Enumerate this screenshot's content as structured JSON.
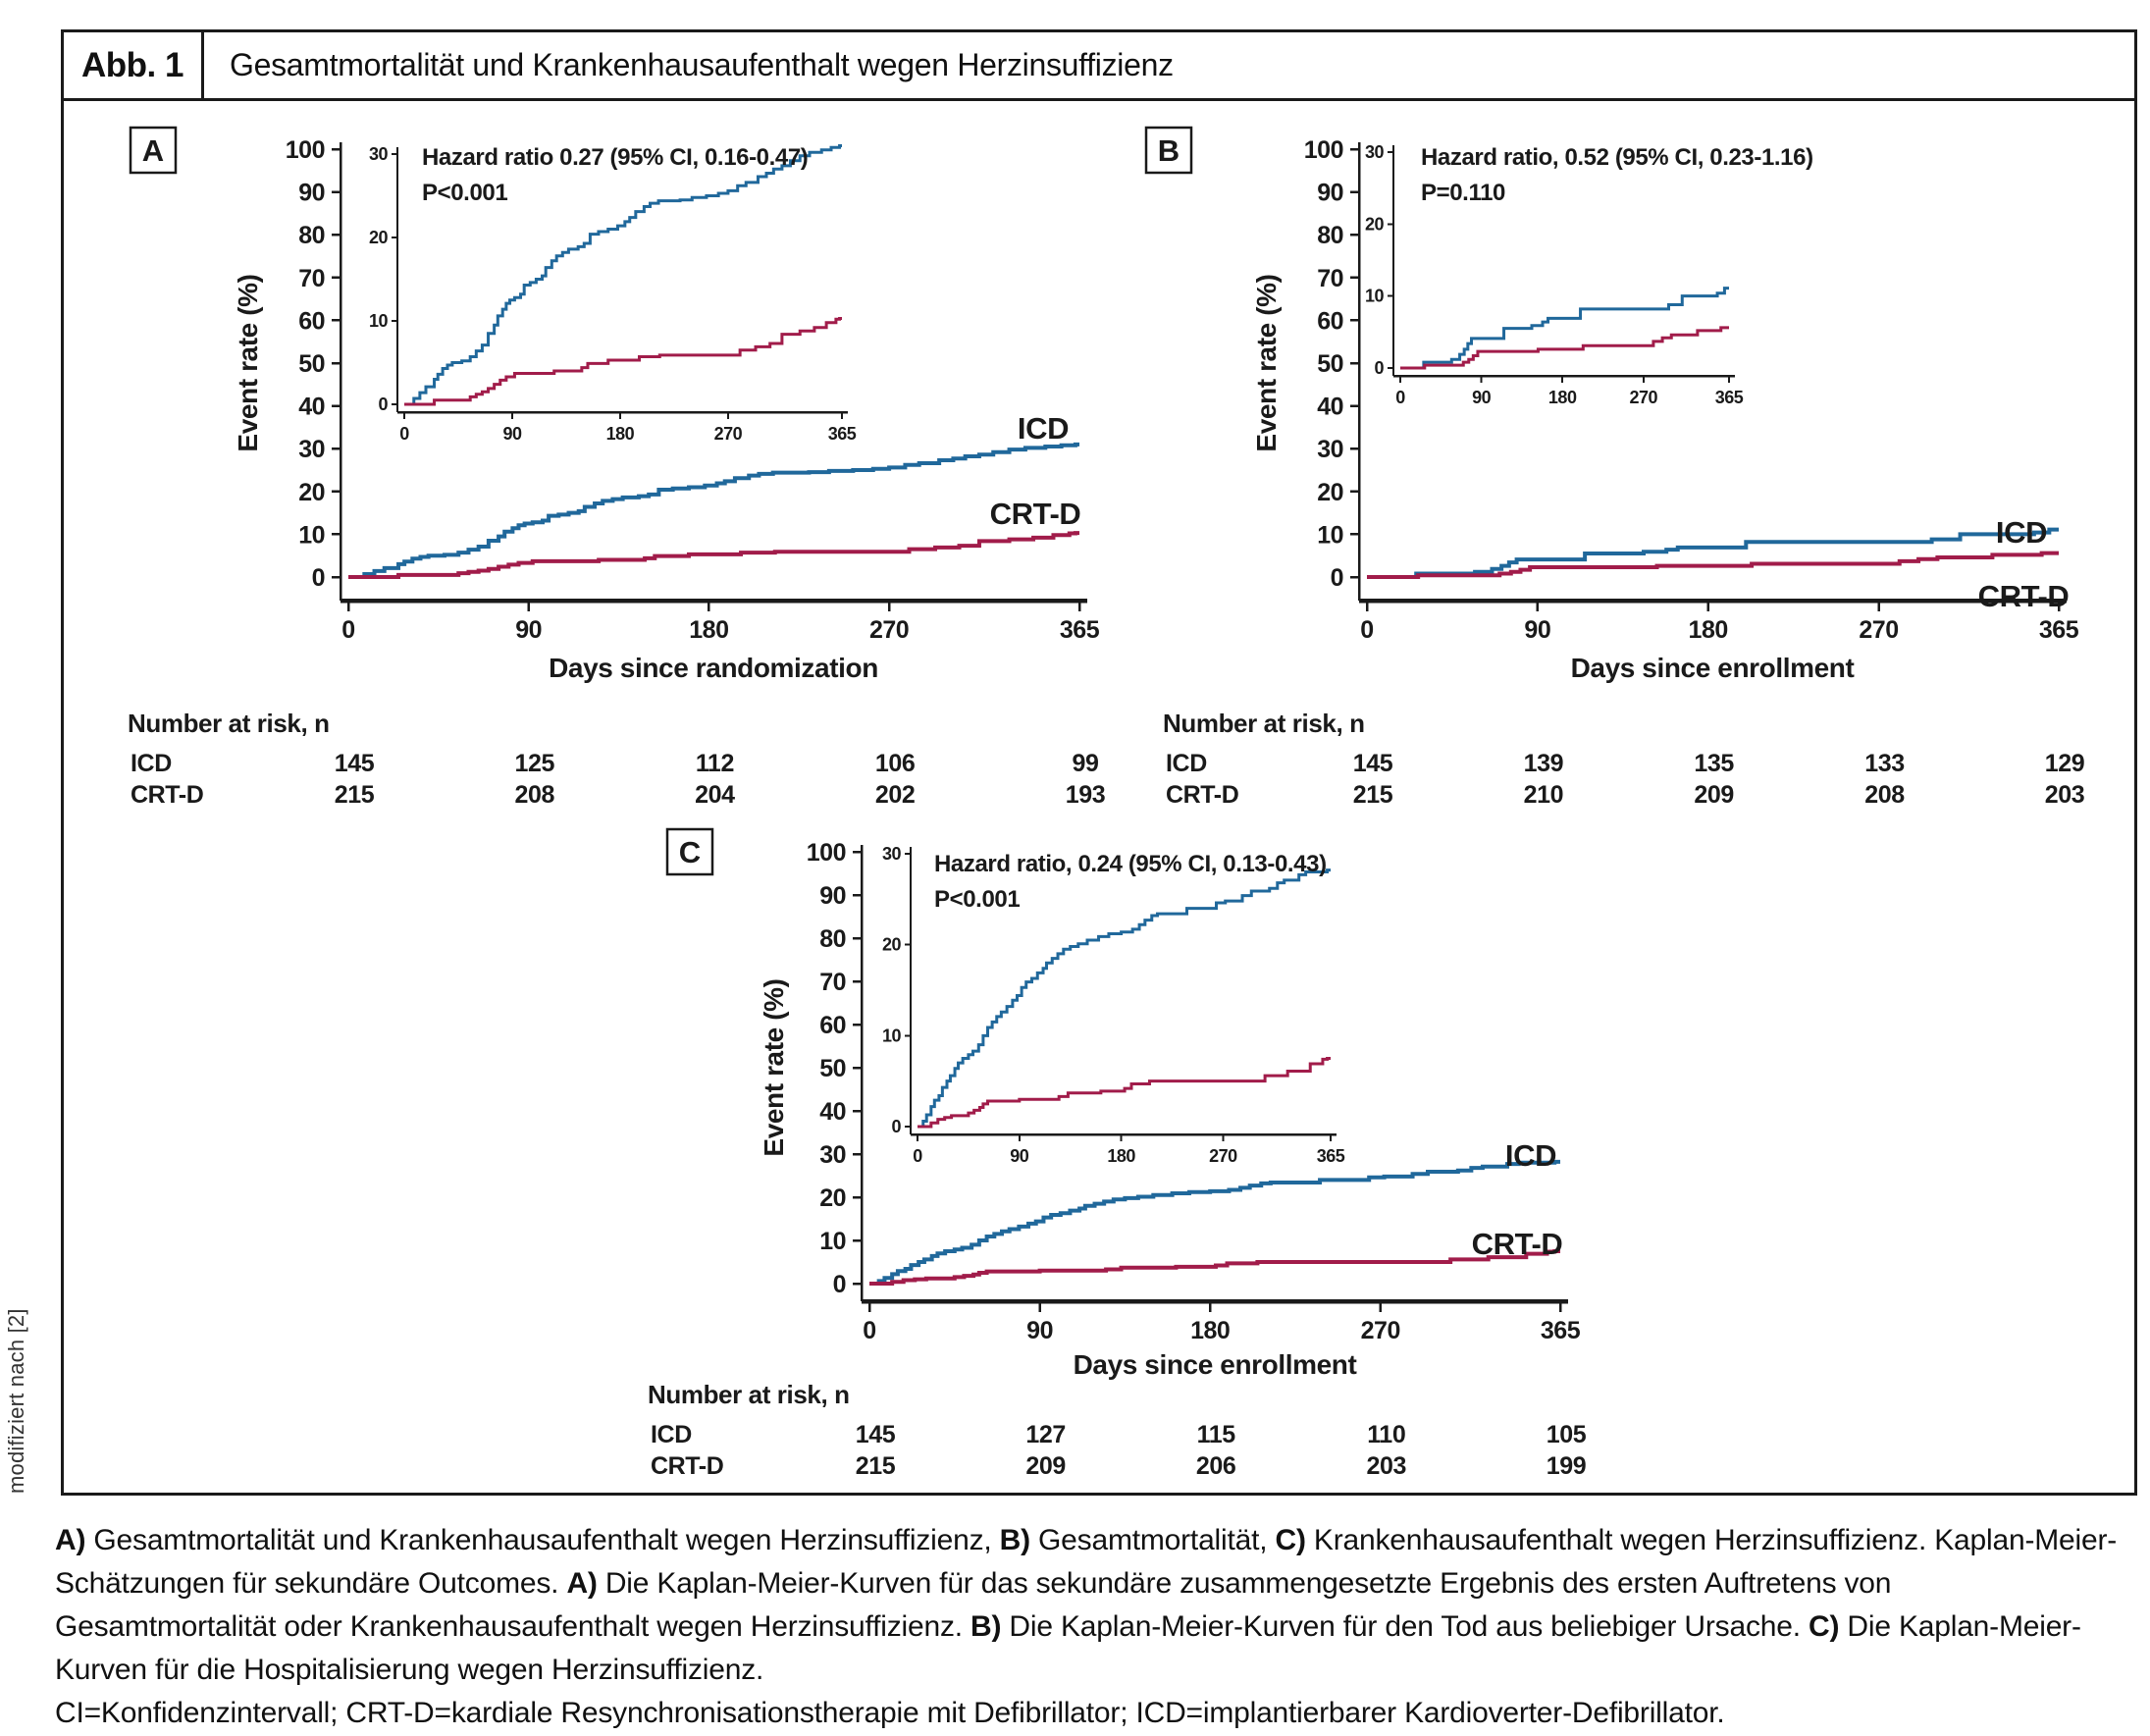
{
  "figure": {
    "label": "Abb. 1",
    "title": "Gesamtmortalität und Krankenhausaufenthalt wegen Herzinsuffizienz",
    "source_note": "modifiziert nach [2]"
  },
  "colors": {
    "icd": "#20689b",
    "crtd": "#a11c4a",
    "axis": "#1a1a1a"
  },
  "caption": {
    "segments": [
      {
        "text": "A)",
        "bold": true
      },
      {
        "text": " Gesamtmortalität und Krankenhausaufenthalt wegen Herzinsuffizienz, ",
        "bold": false
      },
      {
        "text": "B)",
        "bold": true
      },
      {
        "text": " Gesamtmortalität, ",
        "bold": false
      },
      {
        "text": "C)",
        "bold": true
      },
      {
        "text": " Krankenhausaufenthalt wegen Herzinsuffizienz. Kaplan-Meier-Schätzungen für sekundäre Outcomes. ",
        "bold": false
      },
      {
        "text": "A)",
        "bold": true
      },
      {
        "text": " Die Kaplan-Meier-Kurven für das sekundäre zusammengesetzte Ergebnis des ersten Auftretens von Gesamtmortalität oder Krankenhausaufenthalt wegen Herzinsuffizienz. ",
        "bold": false
      },
      {
        "text": "B)",
        "bold": true
      },
      {
        "text": " Die Kaplan-Meier-Kurven für den Tod aus beliebiger Ursache. ",
        "bold": false
      },
      {
        "text": "C)",
        "bold": true
      },
      {
        "text": " Die Kaplan-Meier-Kurven für die Hospitalisierung wegen Herzinsuffizienz.",
        "bold": false
      }
    ],
    "abbreviations": "CI=Konfidenzintervall; CRT-D=kardiale Resynchronisationstherapie mit Defibrillator; ICD=implantierbarer Kardioverter-Defibrillator."
  },
  "chart_data": [
    {
      "panel": "A",
      "type": "line",
      "subtype": "kaplan-meier-step",
      "title": "",
      "xlabel": "Days since randomization",
      "ylabel": "Event rate (%)",
      "xlim": [
        0,
        365
      ],
      "ylim": [
        0,
        100
      ],
      "x_ticks": [
        0,
        90,
        180,
        270,
        365
      ],
      "y_tick_step": 10,
      "inset": {
        "hazard_text": "Hazard ratio 0.27 (95% CI, 0.16-0.47)",
        "p_text": "P<0.001",
        "ylim": [
          0,
          30
        ],
        "y_ticks": [
          0,
          10,
          20,
          30
        ],
        "x_ticks": [
          0,
          90,
          180,
          270,
          365
        ]
      },
      "series": [
        {
          "name": "ICD",
          "color_key": "icd",
          "points": [
            [
              0,
              0
            ],
            [
              8,
              0.7
            ],
            [
              13,
              1.4
            ],
            [
              18,
              2.1
            ],
            [
              25,
              3
            ],
            [
              28,
              3.6
            ],
            [
              32,
              4.3
            ],
            [
              36,
              4.7
            ],
            [
              40,
              5
            ],
            [
              48,
              5.2
            ],
            [
              55,
              5.7
            ],
            [
              60,
              6.4
            ],
            [
              65,
              7.1
            ],
            [
              70,
              8.5
            ],
            [
              75,
              9.5
            ],
            [
              78,
              10.6
            ],
            [
              82,
              11.4
            ],
            [
              85,
              12.1
            ],
            [
              88,
              12.5
            ],
            [
              92,
              12.8
            ],
            [
              97,
              13.2
            ],
            [
              100,
              14.3
            ],
            [
              105,
              14.6
            ],
            [
              110,
              15
            ],
            [
              115,
              15.4
            ],
            [
              118,
              16.4
            ],
            [
              123,
              17.2
            ],
            [
              127,
              17.8
            ],
            [
              132,
              18.2
            ],
            [
              137,
              18.6
            ],
            [
              145,
              18.9
            ],
            [
              150,
              19.3
            ],
            [
              155,
              20.4
            ],
            [
              162,
              20.7
            ],
            [
              170,
              21
            ],
            [
              178,
              21.4
            ],
            [
              184,
              21.9
            ],
            [
              188,
              22.4
            ],
            [
              193,
              23.1
            ],
            [
              200,
              23.7
            ],
            [
              205,
              24.1
            ],
            [
              212,
              24.4
            ],
            [
              230,
              24.5
            ],
            [
              240,
              24.8
            ],
            [
              252,
              25
            ],
            [
              262,
              25.3
            ],
            [
              270,
              25.6
            ],
            [
              278,
              26.2
            ],
            [
              285,
              26.6
            ],
            [
              295,
              27.3
            ],
            [
              302,
              27.7
            ],
            [
              308,
              28.2
            ],
            [
              315,
              28.6
            ],
            [
              322,
              29.2
            ],
            [
              330,
              29.8
            ],
            [
              338,
              30.2
            ],
            [
              348,
              30.5
            ],
            [
              356,
              30.8
            ],
            [
              363,
              31
            ]
          ]
        },
        {
          "name": "CRT-D",
          "color_key": "crtd",
          "points": [
            [
              0,
              0
            ],
            [
              25,
              0.5
            ],
            [
              55,
              0.9
            ],
            [
              60,
              1.2
            ],
            [
              65,
              1.5
            ],
            [
              70,
              1.9
            ],
            [
              75,
              2.4
            ],
            [
              80,
              2.9
            ],
            [
              85,
              3.3
            ],
            [
              92,
              3.7
            ],
            [
              125,
              4
            ],
            [
              148,
              4.4
            ],
            [
              153,
              4.9
            ],
            [
              170,
              5.3
            ],
            [
              196,
              5.7
            ],
            [
              213,
              5.9
            ],
            [
              280,
              6.5
            ],
            [
              293,
              6.9
            ],
            [
              305,
              7.3
            ],
            [
              315,
              8.4
            ],
            [
              330,
              8.8
            ],
            [
              342,
              9.2
            ],
            [
              352,
              9.8
            ],
            [
              360,
              10.2
            ],
            [
              363,
              10.3
            ]
          ]
        }
      ],
      "number_at_risk": {
        "title": "Number at risk, n",
        "days": [
          0,
          90,
          180,
          270,
          365
        ],
        "rows": [
          {
            "name": "ICD",
            "color_key": "icd",
            "values": [
              145,
              125,
              112,
              106,
              99
            ]
          },
          {
            "name": "CRT-D",
            "color_key": "crtd",
            "values": [
              215,
              208,
              204,
              202,
              193
            ]
          }
        ]
      }
    },
    {
      "panel": "B",
      "type": "line",
      "subtype": "kaplan-meier-step",
      "title": "",
      "xlabel": "Days since enrollment",
      "ylabel": "Event rate (%)",
      "xlim": [
        0,
        365
      ],
      "ylim": [
        0,
        100
      ],
      "x_ticks": [
        0,
        90,
        180,
        270,
        365
      ],
      "y_tick_step": 10,
      "inset": {
        "hazard_text": "Hazard ratio, 0.52 (95% CI, 0.23-1.16)",
        "p_text": "P=0.110",
        "ylim": [
          0,
          30
        ],
        "y_ticks": [
          0,
          10,
          20,
          30
        ],
        "x_ticks": [
          0,
          90,
          180,
          270,
          365
        ]
      },
      "series": [
        {
          "name": "ICD",
          "color_key": "icd",
          "points": [
            [
              0,
              0
            ],
            [
              26,
              0.8
            ],
            [
              57,
              1.2
            ],
            [
              66,
              1.9
            ],
            [
              71,
              2.6
            ],
            [
              75,
              3.4
            ],
            [
              79,
              4.1
            ],
            [
              115,
              5.5
            ],
            [
              146,
              5.9
            ],
            [
              158,
              6.4
            ],
            [
              164,
              6.9
            ],
            [
              200,
              8.2
            ],
            [
              298,
              8.8
            ],
            [
              313,
              10
            ],
            [
              352,
              10.4
            ],
            [
              360,
              11.1
            ]
          ]
        },
        {
          "name": "CRT-D",
          "color_key": "crtd",
          "points": [
            [
              0,
              0
            ],
            [
              27,
              0.4
            ],
            [
              70,
              0.8
            ],
            [
              76,
              1.2
            ],
            [
              81,
              1.7
            ],
            [
              86,
              2.3
            ],
            [
              153,
              2.6
            ],
            [
              203,
              3.1
            ],
            [
              281,
              3.7
            ],
            [
              291,
              4.2
            ],
            [
              301,
              4.6
            ],
            [
              330,
              5.2
            ],
            [
              356,
              5.6
            ]
          ]
        }
      ],
      "number_at_risk": {
        "title": "Number at risk, n",
        "days": [
          0,
          90,
          180,
          270,
          365
        ],
        "rows": [
          {
            "name": "ICD",
            "color_key": "icd",
            "values": [
              145,
              139,
              135,
              133,
              129
            ]
          },
          {
            "name": "CRT-D",
            "color_key": "crtd",
            "values": [
              215,
              210,
              209,
              208,
              203
            ]
          }
        ]
      }
    },
    {
      "panel": "C",
      "type": "line",
      "subtype": "kaplan-meier-step",
      "title": "",
      "xlabel": "Days since enrollment",
      "ylabel": "Event rate (%)",
      "xlim": [
        0,
        365
      ],
      "ylim": [
        0,
        100
      ],
      "x_ticks": [
        0,
        90,
        180,
        270,
        365
      ],
      "y_tick_step": 10,
      "inset": {
        "hazard_text": "Hazard ratio, 0.24 (95% CI, 0.13-0.43)",
        "p_text": "P<0.001",
        "ylim": [
          0,
          30
        ],
        "y_ticks": [
          0,
          10,
          20,
          30
        ],
        "x_ticks": [
          0,
          90,
          180,
          270,
          365
        ]
      },
      "series": [
        {
          "name": "ICD",
          "color_key": "icd",
          "points": [
            [
              0,
              0
            ],
            [
              5,
              0.6
            ],
            [
              8,
              1.3
            ],
            [
              12,
              2.2
            ],
            [
              15,
              2.9
            ],
            [
              19,
              3.4
            ],
            [
              22,
              4.3
            ],
            [
              26,
              5
            ],
            [
              29,
              5.6
            ],
            [
              33,
              6.4
            ],
            [
              36,
              7
            ],
            [
              40,
              7.5
            ],
            [
              45,
              7.9
            ],
            [
              49,
              8.3
            ],
            [
              54,
              9
            ],
            [
              58,
              10
            ],
            [
              62,
              10.9
            ],
            [
              66,
              11.5
            ],
            [
              70,
              12.1
            ],
            [
              74,
              12.6
            ],
            [
              79,
              13.2
            ],
            [
              84,
              13.9
            ],
            [
              88,
              14.4
            ],
            [
              92,
              15.3
            ],
            [
              96,
              15.9
            ],
            [
              101,
              16.3
            ],
            [
              106,
              16.9
            ],
            [
              111,
              17.4
            ],
            [
              114,
              18
            ],
            [
              119,
              18.5
            ],
            [
              124,
              19
            ],
            [
              129,
              19.5
            ],
            [
              135,
              19.8
            ],
            [
              142,
              20.1
            ],
            [
              150,
              20.5
            ],
            [
              160,
              20.9
            ],
            [
              169,
              21.2
            ],
            [
              180,
              21.4
            ],
            [
              190,
              21.7
            ],
            [
              196,
              22.2
            ],
            [
              201,
              22.7
            ],
            [
              207,
              23.2
            ],
            [
              212,
              23.4
            ],
            [
              238,
              24
            ],
            [
              264,
              24.6
            ],
            [
              272,
              24.8
            ],
            [
              287,
              25.4
            ],
            [
              295,
              25.9
            ],
            [
              311,
              26.2
            ],
            [
              318,
              26.8
            ],
            [
              324,
              27.1
            ],
            [
              337,
              27.7
            ],
            [
              343,
              28
            ],
            [
              362,
              28.2
            ]
          ]
        },
        {
          "name": "CRT-D",
          "color_key": "crtd",
          "points": [
            [
              0,
              0
            ],
            [
              12,
              0.4
            ],
            [
              18,
              0.8
            ],
            [
              24,
              1
            ],
            [
              30,
              1.2
            ],
            [
              45,
              1.5
            ],
            [
              50,
              1.8
            ],
            [
              55,
              2.1
            ],
            [
              58,
              2.5
            ],
            [
              62,
              2.8
            ],
            [
              90,
              3
            ],
            [
              125,
              3.3
            ],
            [
              133,
              3.7
            ],
            [
              162,
              3.9
            ],
            [
              183,
              4.2
            ],
            [
              189,
              4.7
            ],
            [
              205,
              5
            ],
            [
              307,
              5.6
            ],
            [
              327,
              6.1
            ],
            [
              347,
              6.9
            ],
            [
              358,
              7.4
            ],
            [
              362,
              7.5
            ]
          ]
        }
      ],
      "number_at_risk": {
        "title": "Number at risk, n",
        "days": [
          0,
          90,
          180,
          270,
          365
        ],
        "rows": [
          {
            "name": "ICD",
            "color_key": "icd",
            "values": [
              145,
              127,
              115,
              110,
              105
            ]
          },
          {
            "name": "CRT-D",
            "color_key": "crtd",
            "values": [
              215,
              209,
              206,
              203,
              199
            ]
          }
        ]
      }
    }
  ]
}
